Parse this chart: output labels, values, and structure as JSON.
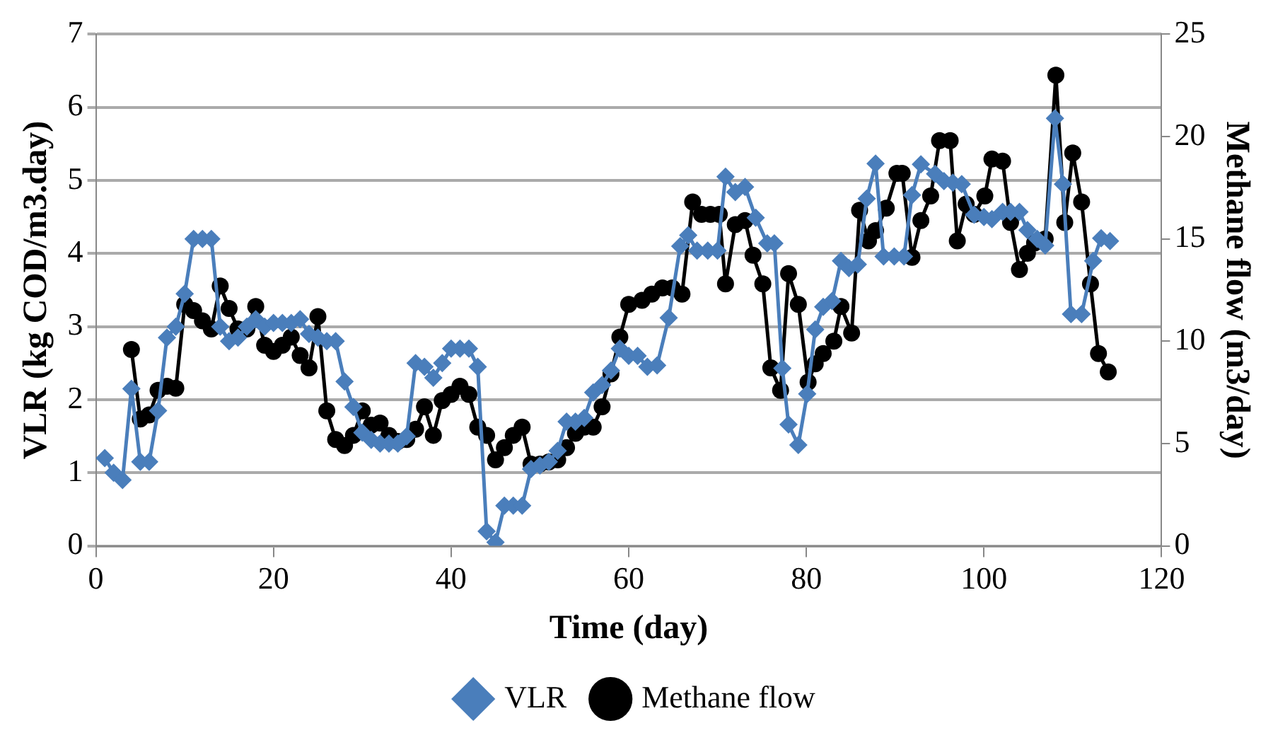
{
  "chart_data": {
    "type": "line",
    "xlabel": "Time (day)",
    "ylabel": "VLR (kg COD/m3.day)",
    "y2label": "Methane flow (m3/day)",
    "xlim": [
      0,
      120
    ],
    "xticks": [
      0,
      20,
      40,
      60,
      80,
      100,
      120
    ],
    "ylim": [
      0,
      7
    ],
    "yticks": [
      0,
      1,
      2,
      3,
      4,
      5,
      6,
      7
    ],
    "y2lim": [
      0,
      25
    ],
    "y2ticks": [
      0,
      5,
      10,
      15,
      20,
      25
    ],
    "grid": "y",
    "legend": "bottom",
    "series": [
      {
        "name": "VLR",
        "color": "#4a7ebb",
        "marker": "diamond",
        "x": [
          1,
          2,
          3,
          4,
          5,
          6,
          7,
          8,
          9,
          10,
          11,
          12,
          13,
          14,
          15,
          16,
          17,
          18,
          19,
          20,
          21,
          22,
          23,
          24,
          25,
          26,
          27,
          28,
          29,
          30,
          31,
          32,
          33,
          34,
          35,
          36,
          37,
          38,
          39,
          40,
          41,
          42,
          43,
          44,
          45,
          46,
          47,
          48,
          49,
          50,
          51,
          52,
          53,
          54,
          55,
          56,
          57,
          58,
          59,
          60,
          61,
          62.1,
          63.2,
          64.5,
          65.8,
          66.7,
          67.7,
          68.9,
          70.0,
          70.9,
          72.0,
          73.1,
          74.3,
          75.6,
          76.4,
          77.3,
          78.0,
          79.1,
          80.1,
          81.0,
          81.9,
          82.9,
          83.9,
          84.8,
          85.8,
          86.8,
          87.8,
          88.7,
          89.9,
          91.0,
          91.9,
          92.9,
          94.5,
          95.5,
          96.5,
          97.5,
          98.9,
          100.0,
          100.9,
          102.1,
          103.0,
          104.0,
          104.9,
          106.0,
          106.9,
          108.0,
          108.9,
          109.8,
          111.0,
          112.3,
          113.2,
          114.2
        ],
        "values": [
          1.2,
          1.0,
          0.9,
          2.15,
          1.15,
          1.15,
          1.85,
          2.85,
          3.0,
          3.45,
          4.2,
          4.2,
          4.2,
          3.0,
          2.8,
          2.85,
          3.0,
          3.1,
          3.0,
          3.05,
          3.05,
          3.05,
          3.1,
          2.9,
          2.85,
          2.8,
          2.8,
          2.25,
          1.9,
          1.55,
          1.45,
          1.4,
          1.4,
          1.4,
          1.5,
          2.5,
          2.45,
          2.3,
          2.5,
          2.7,
          2.7,
          2.7,
          2.45,
          0.2,
          0.05,
          0.55,
          0.55,
          0.55,
          1.05,
          1.1,
          1.15,
          1.3,
          1.7,
          1.7,
          1.75,
          2.1,
          2.2,
          2.4,
          2.7,
          2.6,
          2.6,
          2.45,
          2.47,
          3.12,
          4.1,
          4.25,
          4.04,
          4.04,
          4.04,
          5.05,
          4.84,
          4.91,
          4.49,
          4.14,
          4.14,
          2.43,
          1.66,
          1.38,
          2.08,
          2.96,
          3.27,
          3.35,
          3.9,
          3.8,
          3.85,
          4.75,
          5.23,
          3.96,
          3.96,
          3.96,
          4.8,
          5.22,
          5.09,
          4.99,
          4.97,
          4.95,
          4.53,
          4.5,
          4.47,
          4.57,
          4.57,
          4.57,
          4.32,
          4.2,
          4.11,
          5.85,
          4.95,
          3.17,
          3.17,
          3.9,
          4.21,
          4.17
        ]
      },
      {
        "name": "Methane flow",
        "color": "#000000",
        "marker": "circle",
        "axis": "y2",
        "x": [
          4,
          5,
          6,
          7,
          8,
          9,
          10,
          11,
          12,
          13,
          14,
          15,
          16,
          17,
          18,
          19,
          20,
          21,
          22,
          23,
          24,
          25,
          26,
          27,
          28,
          29,
          30,
          31,
          32,
          33,
          34,
          35,
          36,
          37,
          38,
          39,
          40,
          41,
          42,
          43,
          44,
          45,
          46,
          47,
          48,
          49,
          50,
          51,
          52,
          53,
          54,
          55,
          56,
          57,
          58,
          59,
          60,
          61.5,
          62.6,
          63.8,
          64.9,
          66.0,
          67.2,
          68.2,
          69.2,
          70.2,
          70.9,
          72.0,
          73.1,
          74.0,
          75.1,
          76.0,
          77.1,
          78.0,
          79.1,
          80.2,
          81.0,
          81.9,
          83.1,
          83.9,
          85.1,
          86.0,
          87.0,
          87.8,
          89.0,
          90.2,
          90.8,
          91.9,
          92.9,
          94.0,
          95.0,
          96.2,
          97.0,
          98.0,
          98.9,
          100.1,
          100.9,
          102.1,
          103.0,
          104.0,
          104.9,
          105.7,
          106.9,
          108.1,
          109.1,
          110.0,
          111.0,
          112.0,
          112.9,
          114.0
        ],
        "values": [
          9.6,
          6.2,
          6.4,
          7.6,
          7.8,
          7.7,
          11.8,
          11.5,
          11.0,
          10.6,
          12.7,
          11.6,
          10.6,
          10.6,
          11.7,
          9.8,
          9.5,
          9.8,
          10.2,
          9.3,
          8.7,
          11.2,
          6.6,
          5.2,
          4.9,
          5.4,
          6.6,
          5.9,
          6.0,
          5.4,
          5.1,
          5.2,
          5.7,
          6.8,
          5.4,
          7.1,
          7.4,
          7.8,
          7.4,
          5.8,
          5.4,
          4.2,
          4.8,
          5.4,
          5.8,
          4.0,
          4.0,
          4.1,
          4.2,
          4.8,
          5.5,
          5.8,
          5.8,
          6.8,
          8.4,
          10.2,
          11.8,
          12.0,
          12.3,
          12.6,
          12.6,
          12.3,
          16.8,
          16.2,
          16.2,
          16.2,
          12.8,
          15.7,
          15.9,
          14.2,
          12.8,
          8.7,
          7.6,
          13.3,
          11.8,
          8.0,
          8.9,
          9.4,
          10.0,
          11.7,
          10.4,
          16.4,
          14.9,
          15.4,
          16.5,
          18.2,
          18.2,
          14.1,
          15.9,
          17.1,
          19.8,
          19.8,
          14.9,
          16.7,
          16.2,
          17.1,
          18.9,
          18.8,
          15.8,
          13.5,
          14.3,
          14.8,
          15.0,
          23.0,
          15.8,
          19.2,
          16.8,
          12.8,
          9.4,
          8.5
        ]
      }
    ]
  }
}
